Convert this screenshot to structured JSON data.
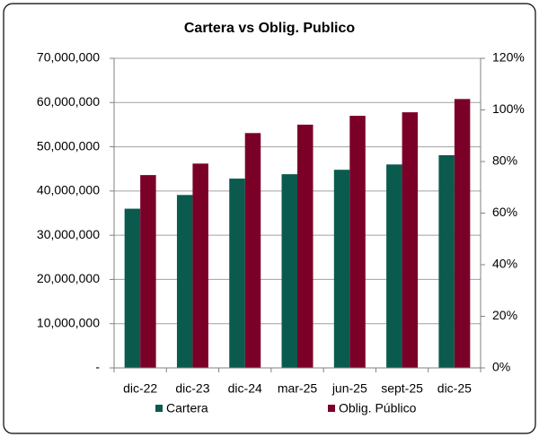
{
  "chart_data": {
    "type": "bar",
    "title": "Cartera vs Oblig. Publico",
    "categories": [
      "dic-22",
      "dic-23",
      "dic-24",
      "mar-25",
      "jun-25",
      "sept-25",
      "dic-25"
    ],
    "series": [
      {
        "name": "Cartera",
        "color": "#0b5a4e",
        "values": [
          36000000,
          39100000,
          42800000,
          43800000,
          44800000,
          46000000,
          48100000
        ]
      },
      {
        "name": "Oblig. Público",
        "color": "#7b0028",
        "values": [
          43600000,
          46200000,
          53100000,
          55000000,
          57000000,
          57800000,
          60800000
        ]
      }
    ],
    "ylim": [
      0,
      70000000
    ],
    "yticks": [
      {
        "value": 0,
        "label": "-"
      },
      {
        "value": 10000000,
        "label": "10,000,000"
      },
      {
        "value": 20000000,
        "label": "20,000,000"
      },
      {
        "value": 30000000,
        "label": "30,000,000"
      },
      {
        "value": 40000000,
        "label": "40,000,000"
      },
      {
        "value": 50000000,
        "label": "50,000,000"
      },
      {
        "value": 60000000,
        "label": "60,000,000"
      },
      {
        "value": 70000000,
        "label": "70,000,000"
      }
    ],
    "y2lim": [
      0,
      120
    ],
    "y2ticks": [
      {
        "value": 0,
        "label": "0%"
      },
      {
        "value": 20,
        "label": "20%"
      },
      {
        "value": 40,
        "label": "40%"
      },
      {
        "value": 60,
        "label": "60%"
      },
      {
        "value": 80,
        "label": "80%"
      },
      {
        "value": 100,
        "label": "100%"
      },
      {
        "value": 120,
        "label": "120%"
      }
    ],
    "grid": true,
    "legend": "bottom"
  }
}
